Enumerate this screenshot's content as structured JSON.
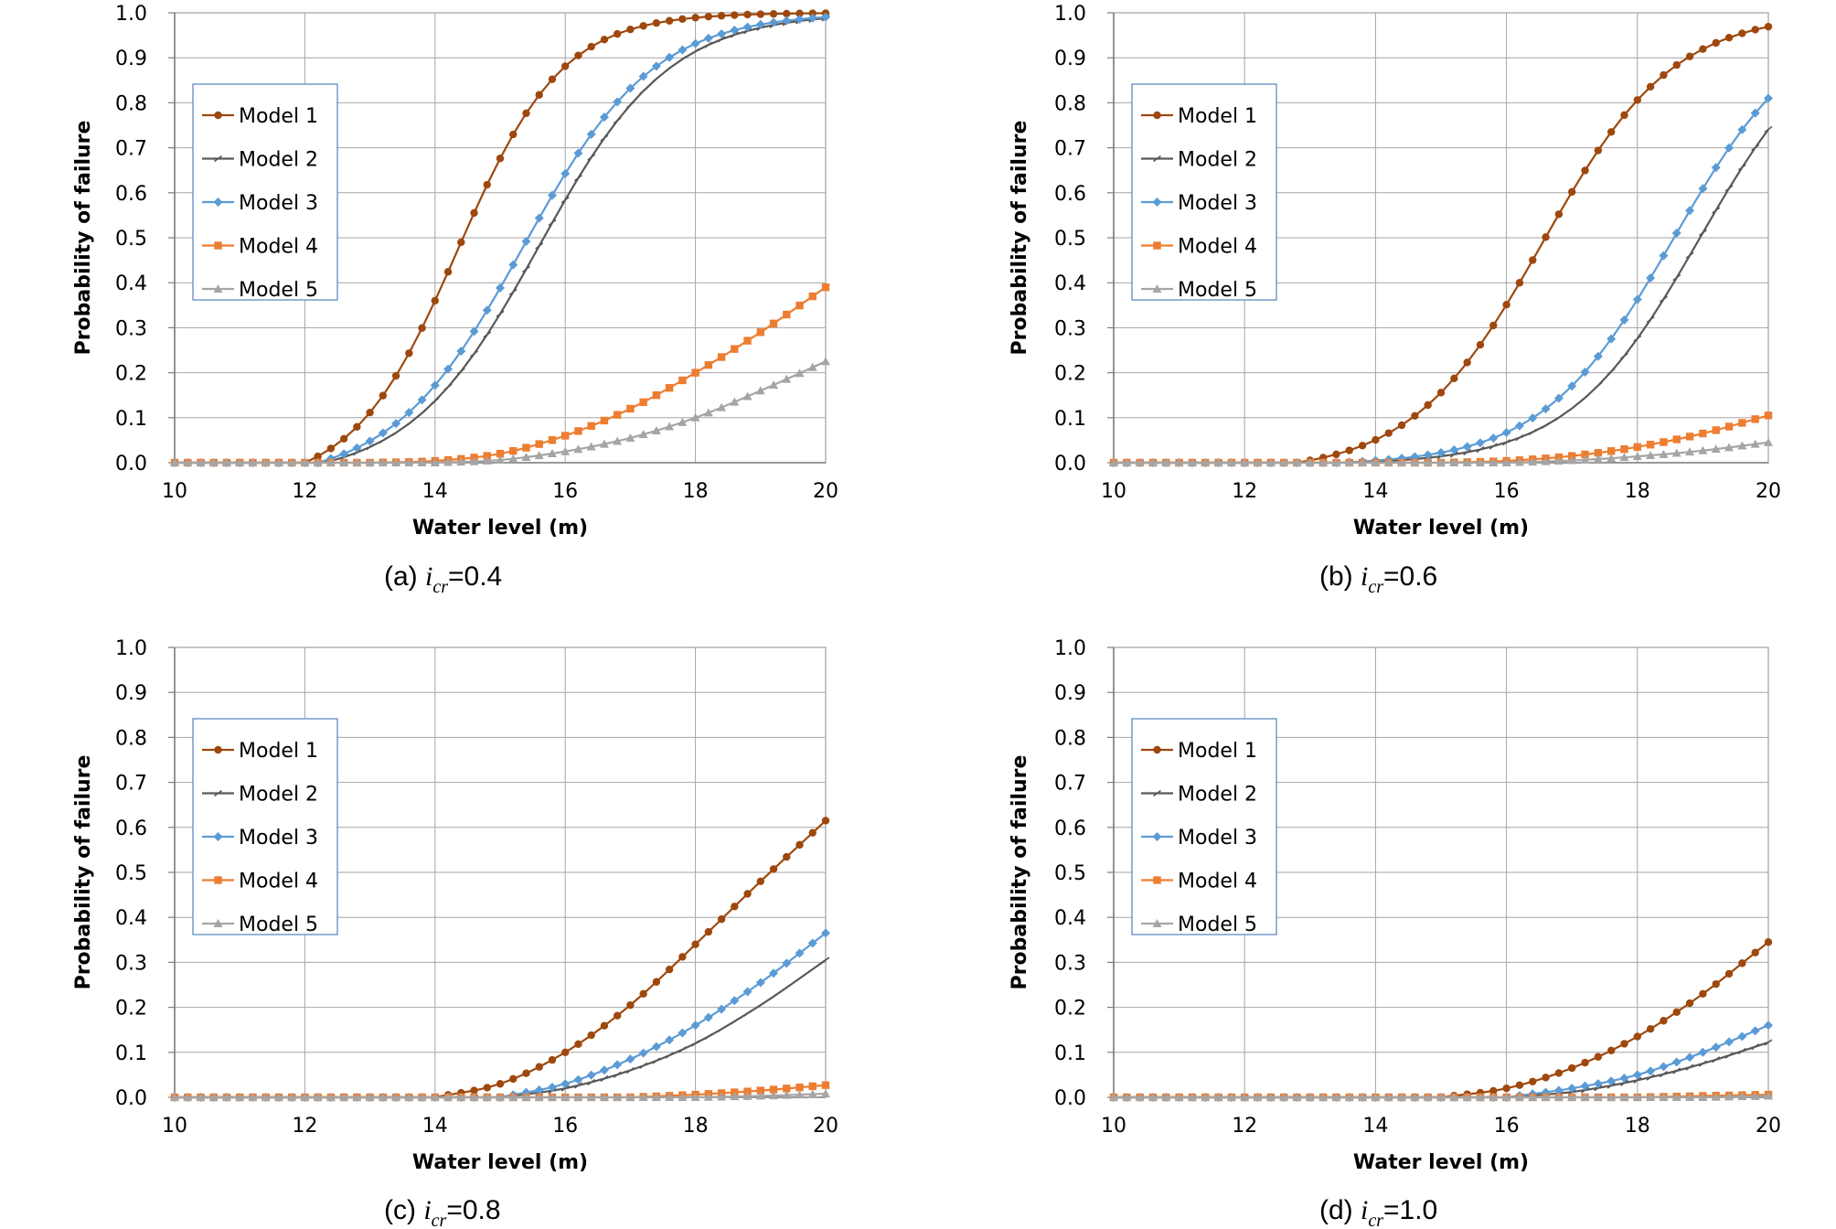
{
  "colors": {
    "model1": "#9e480e",
    "model2": "#595959",
    "model3": "#5b9bd5",
    "model4": "#ed7d31",
    "model5": "#a5a5a5",
    "grid": "#a6a6a6",
    "legend_border": "#4f81bd"
  },
  "chart_data": [
    {
      "type": "line",
      "caption": {
        "prefix": "(a)",
        "symbol": "i",
        "subscript": "cr",
        "suffix": "=0.4"
      },
      "xlabel": "Water level (m)",
      "ylabel": "Probability  of failure",
      "xlim": [
        10,
        20
      ],
      "ylim": [
        0,
        1.0
      ],
      "xticks": [
        10,
        12,
        14,
        16,
        18,
        20
      ],
      "yticks": [
        0.0,
        0.1,
        0.2,
        0.3,
        0.4,
        0.5,
        0.6,
        0.7,
        0.8,
        0.9,
        1.0
      ],
      "grid": true,
      "legend_position": "top-left",
      "series": [
        {
          "name": "Model 1",
          "color_key": "model1",
          "marker": "circle",
          "logistic": {
            "mu": 14.35,
            "s": 0.8,
            "start": 12
          }
        },
        {
          "name": "Model 2",
          "color_key": "model2",
          "marker": "dash",
          "logistic": {
            "mu": 15.6,
            "s": 1.0,
            "start": 12.3
          }
        },
        {
          "name": "Model 3",
          "color_key": "model3",
          "marker": "diamond",
          "logistic": {
            "mu": 15.35,
            "s": 1.0,
            "start": 12.2
          }
        },
        {
          "name": "Model 4",
          "color_key": "model4",
          "marker": "square",
          "points": [
            [
              13,
              0
            ],
            [
              14,
              0.004
            ],
            [
              15,
              0.02
            ],
            [
              16,
              0.06
            ],
            [
              17,
              0.12
            ],
            [
              18,
              0.2
            ],
            [
              19,
              0.29
            ],
            [
              20,
              0.39
            ]
          ]
        },
        {
          "name": "Model 5",
          "color_key": "model5",
          "marker": "triangle",
          "points": [
            [
              14,
              0
            ],
            [
              15,
              0.006
            ],
            [
              16,
              0.025
            ],
            [
              17,
              0.055
            ],
            [
              18,
              0.1
            ],
            [
              19,
              0.16
            ],
            [
              20,
              0.225
            ]
          ]
        }
      ]
    },
    {
      "type": "line",
      "caption": {
        "prefix": "(b)",
        "symbol": "i",
        "subscript": "cr",
        "suffix": "=0.6"
      },
      "xlabel": "Water level (m)",
      "ylabel": "Probability  of failure",
      "xlim": [
        10,
        20
      ],
      "ylim": [
        0,
        1.0
      ],
      "xticks": [
        10,
        12,
        14,
        16,
        18,
        20
      ],
      "yticks": [
        0.0,
        0.1,
        0.2,
        0.3,
        0.4,
        0.5,
        0.6,
        0.7,
        0.8,
        0.9,
        1.0
      ],
      "grid": true,
      "legend_position": "top-left",
      "series": [
        {
          "name": "Model 1",
          "color_key": "model1",
          "marker": "circle",
          "logistic": {
            "mu": 16.55,
            "s": 1.0,
            "start": 12.8
          }
        },
        {
          "name": "Model 2",
          "color_key": "model2",
          "marker": "dash",
          "logistic": {
            "mu": 18.95,
            "s": 1.0,
            "start": 13.6
          }
        },
        {
          "name": "Model 3",
          "color_key": "model3",
          "marker": "diamond",
          "logistic": {
            "mu": 18.55,
            "s": 1.0,
            "start": 13.4
          }
        },
        {
          "name": "Model 4",
          "color_key": "model4",
          "marker": "square",
          "points": [
            [
              15,
              0
            ],
            [
              16,
              0.004
            ],
            [
              17,
              0.015
            ],
            [
              18,
              0.035
            ],
            [
              19,
              0.065
            ],
            [
              20,
              0.105
            ]
          ]
        },
        {
          "name": "Model 5",
          "color_key": "model5",
          "marker": "triangle",
          "points": [
            [
              16,
              0
            ],
            [
              17,
              0.005
            ],
            [
              18,
              0.014
            ],
            [
              19,
              0.027
            ],
            [
              20,
              0.045
            ]
          ]
        }
      ]
    },
    {
      "type": "line",
      "caption": {
        "prefix": "(c)",
        "symbol": "i",
        "subscript": "cr",
        "suffix": "=0.8"
      },
      "xlabel": "Water level (m)",
      "ylabel": "Probability  of failure",
      "xlim": [
        10,
        20
      ],
      "ylim": [
        0,
        1.0
      ],
      "xticks": [
        10,
        12,
        14,
        16,
        18,
        20
      ],
      "yticks": [
        0.0,
        0.1,
        0.2,
        0.3,
        0.4,
        0.5,
        0.6,
        0.7,
        0.8,
        0.9,
        1.0
      ],
      "grid": true,
      "legend_position": "top-left",
      "series": [
        {
          "name": "Model 1",
          "color_key": "model1",
          "marker": "circle",
          "points": [
            [
              14,
              0
            ],
            [
              15,
              0.03
            ],
            [
              16,
              0.1
            ],
            [
              17,
              0.205
            ],
            [
              18,
              0.34
            ],
            [
              19,
              0.48
            ],
            [
              20,
              0.615
            ]
          ]
        },
        {
          "name": "Model 2",
          "color_key": "model2",
          "marker": "dash",
          "points": [
            [
              15,
              0
            ],
            [
              16,
              0.02
            ],
            [
              17,
              0.06
            ],
            [
              18,
              0.12
            ],
            [
              19,
              0.205
            ],
            [
              20,
              0.305
            ]
          ]
        },
        {
          "name": "Model 3",
          "color_key": "model3",
          "marker": "diamond",
          "points": [
            [
              15,
              0
            ],
            [
              16,
              0.03
            ],
            [
              17,
              0.085
            ],
            [
              18,
              0.16
            ],
            [
              19,
              0.255
            ],
            [
              20,
              0.365
            ]
          ]
        },
        {
          "name": "Model 4",
          "color_key": "model4",
          "marker": "square",
          "points": [
            [
              17,
              0
            ],
            [
              18,
              0.006
            ],
            [
              19,
              0.015
            ],
            [
              20,
              0.027
            ]
          ]
        },
        {
          "name": "Model 5",
          "color_key": "model5",
          "marker": "triangle",
          "points": [
            [
              18,
              0
            ],
            [
              19,
              0.003
            ],
            [
              20,
              0.008
            ]
          ]
        }
      ]
    },
    {
      "type": "line",
      "caption": {
        "prefix": "(d)",
        "symbol": "i",
        "subscript": "cr",
        "suffix": "=1.0"
      },
      "xlabel": "Water level (m)",
      "ylabel": "Probability  of failure",
      "xlim": [
        10,
        20
      ],
      "ylim": [
        0,
        1.0
      ],
      "xticks": [
        10,
        12,
        14,
        16,
        18,
        20
      ],
      "yticks": [
        0.0,
        0.1,
        0.2,
        0.3,
        0.4,
        0.5,
        0.6,
        0.7,
        0.8,
        0.9,
        1.0
      ],
      "grid": true,
      "legend_position": "top-left",
      "series": [
        {
          "name": "Model 1",
          "color_key": "model1",
          "marker": "circle",
          "points": [
            [
              15,
              0
            ],
            [
              16,
              0.02
            ],
            [
              17,
              0.065
            ],
            [
              18,
              0.135
            ],
            [
              19,
              0.23
            ],
            [
              20,
              0.345
            ]
          ]
        },
        {
          "name": "Model 2",
          "color_key": "model2",
          "marker": "dash",
          "points": [
            [
              16,
              0
            ],
            [
              17,
              0.012
            ],
            [
              18,
              0.038
            ],
            [
              19,
              0.075
            ],
            [
              20,
              0.122
            ]
          ]
        },
        {
          "name": "Model 3",
          "color_key": "model3",
          "marker": "diamond",
          "points": [
            [
              16,
              0
            ],
            [
              17,
              0.02
            ],
            [
              18,
              0.05
            ],
            [
              19,
              0.1
            ],
            [
              20,
              0.16
            ]
          ]
        },
        {
          "name": "Model 4",
          "color_key": "model4",
          "marker": "square",
          "points": [
            [
              18,
              0
            ],
            [
              19,
              0.003
            ],
            [
              20,
              0.006
            ]
          ]
        },
        {
          "name": "Model 5",
          "color_key": "model5",
          "marker": "triangle",
          "points": [
            [
              19,
              0
            ],
            [
              20,
              0.003
            ]
          ]
        }
      ]
    }
  ]
}
